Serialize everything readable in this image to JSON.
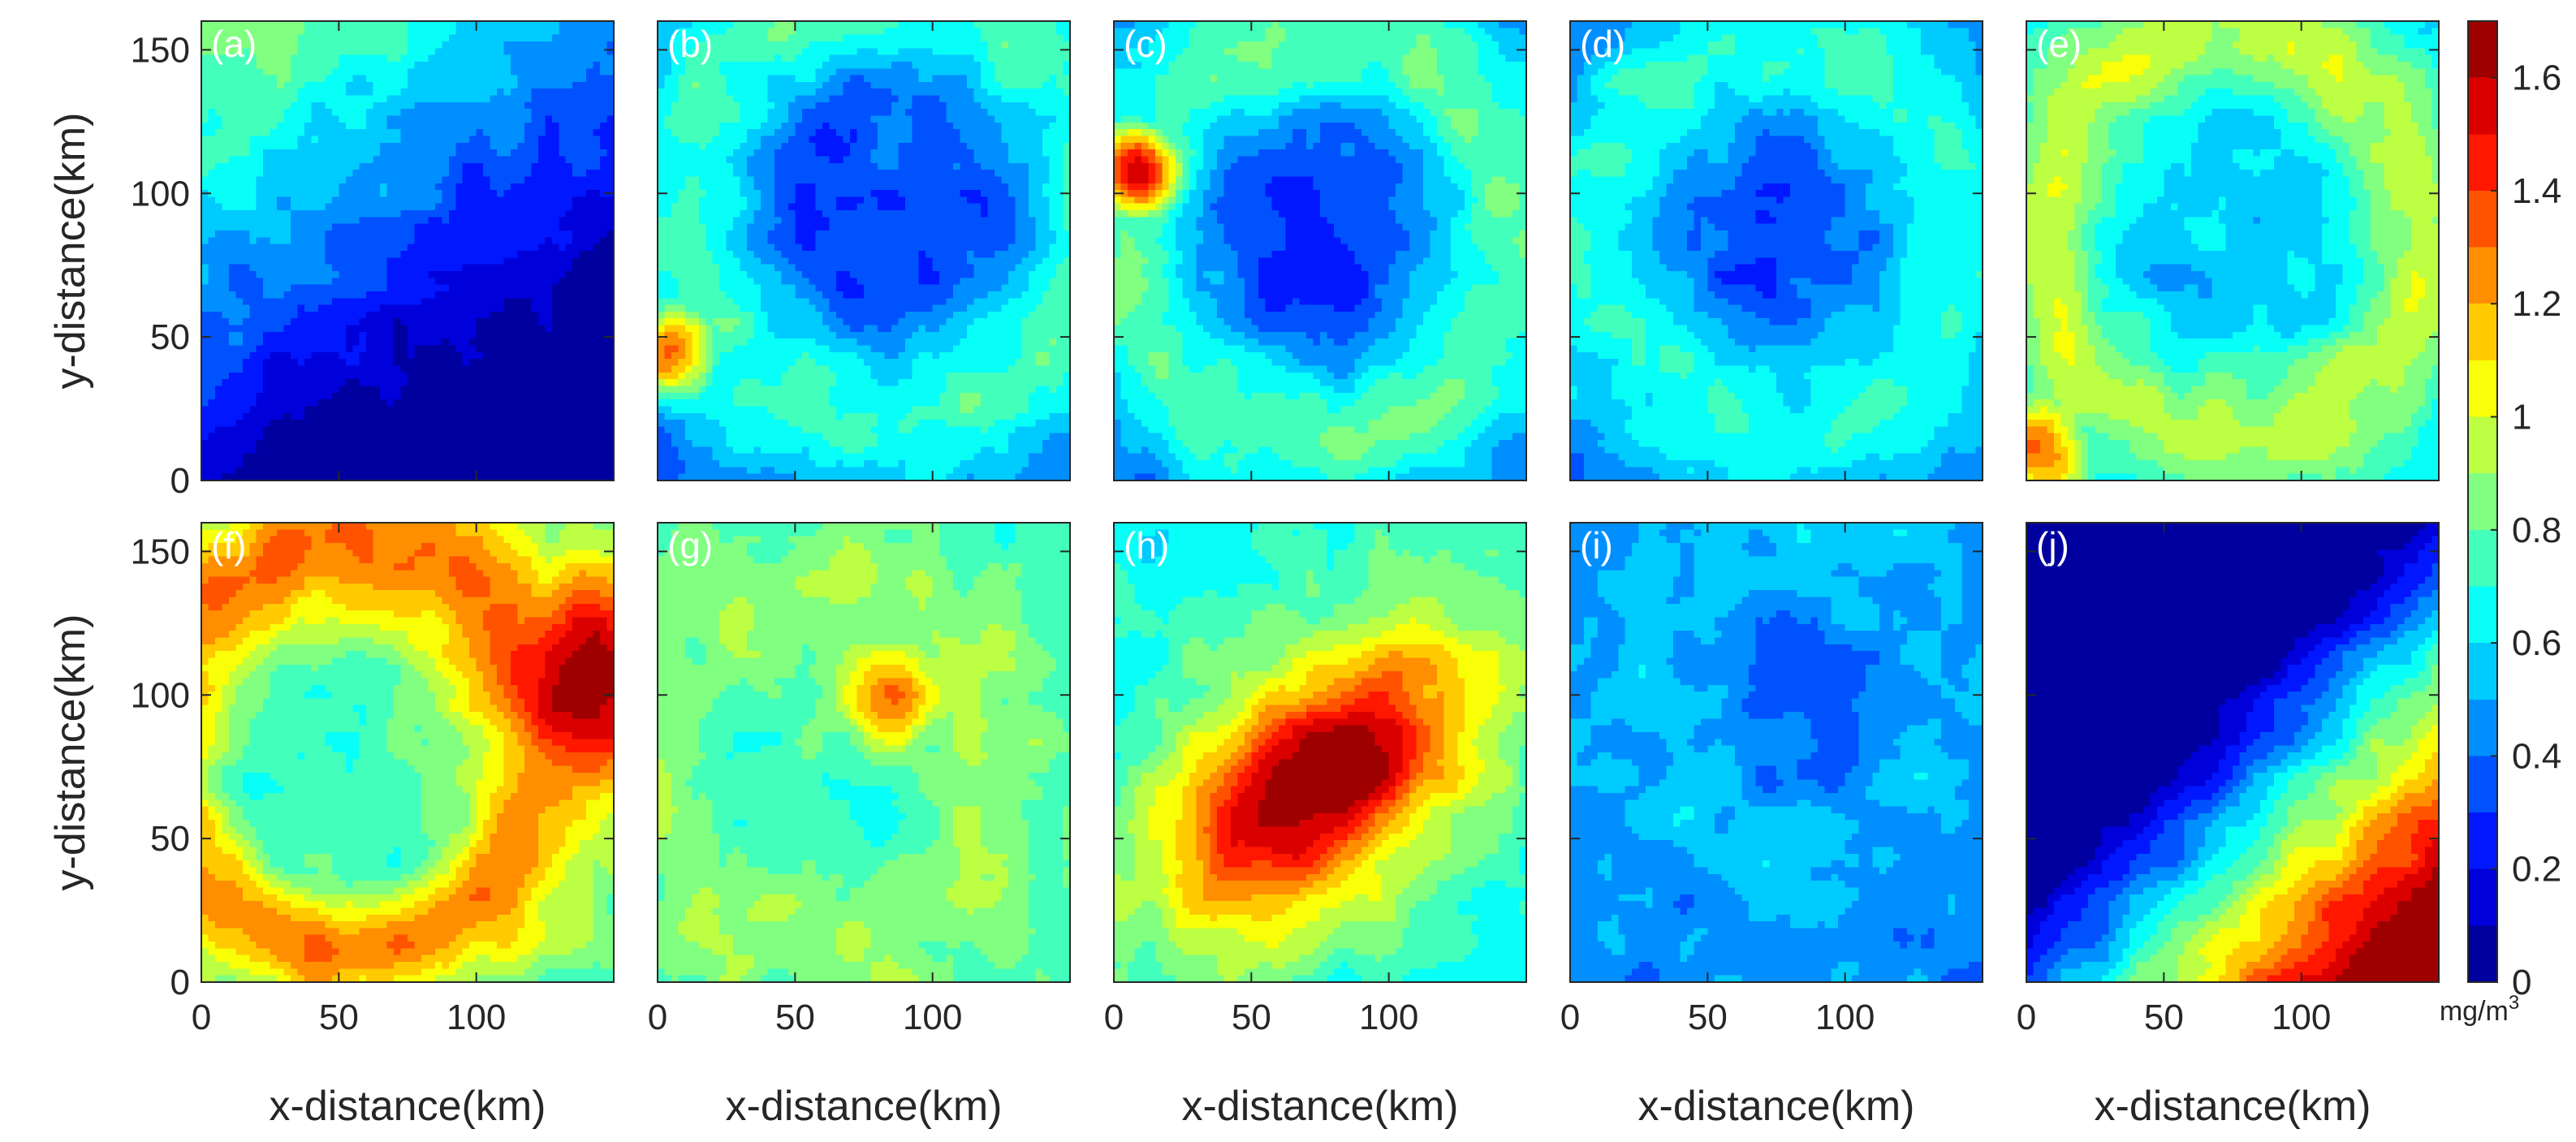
{
  "chart_data": {
    "type": "heatmap",
    "x_axis": {
      "label": "x-distance(km)",
      "range": [
        0,
        150
      ],
      "ticks": [
        0,
        50,
        100
      ]
    },
    "y_axis": {
      "label": "y-distance(km)",
      "range": [
        0,
        160
      ],
      "ticks": [
        0,
        50,
        100,
        150
      ]
    },
    "colorbar": {
      "range": [
        0,
        1.7
      ],
      "ticks": [
        0,
        0.2,
        0.4,
        0.6,
        0.8,
        1,
        1.2,
        1.4,
        1.6
      ],
      "tick_labels": [
        "0",
        "0.2",
        "0.4",
        "0.6",
        "0.8",
        "1",
        "1.2",
        "1.4",
        "1.6"
      ],
      "units": "mg/m",
      "units_exponent": "3",
      "colormap": "jet"
    },
    "panels": [
      {
        "label": "(a)",
        "pattern": "low_uniform",
        "base": 0.3,
        "gradient_dx": -0.0003,
        "gradient_dy": 0.0005,
        "center": [
          80,
          80
        ],
        "spot_value": 0.2,
        "ring_value": 0.3,
        "ring_radius": 70,
        "ring_width": 20
      },
      {
        "label": "(b)",
        "pattern": "ring",
        "base": 0.35,
        "gradient_dx": 0,
        "gradient_dy": 0,
        "center": [
          85,
          95
        ],
        "spot_value": 0.25,
        "ring_value": 0.75,
        "ring_radius": 75,
        "ring_width": 30,
        "hotspot": [
          5,
          45,
          1.3
        ]
      },
      {
        "label": "(c)",
        "pattern": "ring",
        "base": 0.3,
        "gradient_dx": 0,
        "gradient_dy": 0,
        "center": [
          75,
          85
        ],
        "spot_value": 0.25,
        "ring_value": 0.8,
        "ring_radius": 70,
        "ring_width": 30,
        "hotspot": [
          8,
          108,
          1.6
        ]
      },
      {
        "label": "(d)",
        "pattern": "ring",
        "base": 0.4,
        "gradient_dx": 0,
        "gradient_dy": 0,
        "center": [
          75,
          85
        ],
        "spot_value": 0.3,
        "ring_value": 0.7,
        "ring_radius": 65,
        "ring_width": 30
      },
      {
        "label": "(e)",
        "pattern": "ring",
        "base": 0.55,
        "gradient_dx": 0,
        "gradient_dy": 0,
        "center": [
          75,
          85
        ],
        "spot_value": 0.5,
        "ring_value": 0.95,
        "ring_radius": 70,
        "ring_width": 25,
        "hotspot": [
          5,
          10,
          1.3
        ]
      },
      {
        "label": "(f)",
        "pattern": "swirl",
        "base": 0.75,
        "gradient_dx": 0,
        "gradient_dy": 0,
        "center": [
          60,
          75
        ],
        "spot_value": 0.6,
        "ring_value": 1.3,
        "ring_radius": 70,
        "ring_width": 25,
        "hotspot": [
          140,
          105,
          1.7
        ]
      },
      {
        "label": "(g)",
        "pattern": "ring",
        "base": 0.75,
        "gradient_dx": 0,
        "gradient_dy": 0,
        "center": [
          60,
          75
        ],
        "spot_value": 0.62,
        "ring_value": 0.9,
        "ring_radius": 60,
        "ring_width": 30,
        "hotspot": [
          85,
          100,
          1.25
        ]
      },
      {
        "label": "(h)",
        "pattern": "blob",
        "base": 0.65,
        "gradient_dx": 0,
        "gradient_dy": 0,
        "center": [
          75,
          70
        ],
        "spot_value": 1.7,
        "ring_value": 1.3,
        "ring_radius": 60,
        "ring_width": 25
      },
      {
        "label": "(i)",
        "pattern": "swirl",
        "base": 0.45,
        "gradient_dx": 0,
        "gradient_dy": 0,
        "center": [
          90,
          100
        ],
        "spot_value": 0.35,
        "ring_value": 0.55,
        "ring_radius": 55,
        "ring_width": 30
      },
      {
        "label": "(j)",
        "pattern": "low_uniform",
        "base": 0.25,
        "gradient_dx": 0.0012,
        "gradient_dy": -0.0012,
        "center": [
          90,
          80
        ],
        "spot_value": 0.2,
        "ring_value": 0.3,
        "ring_radius": 60,
        "ring_width": 20
      }
    ]
  }
}
